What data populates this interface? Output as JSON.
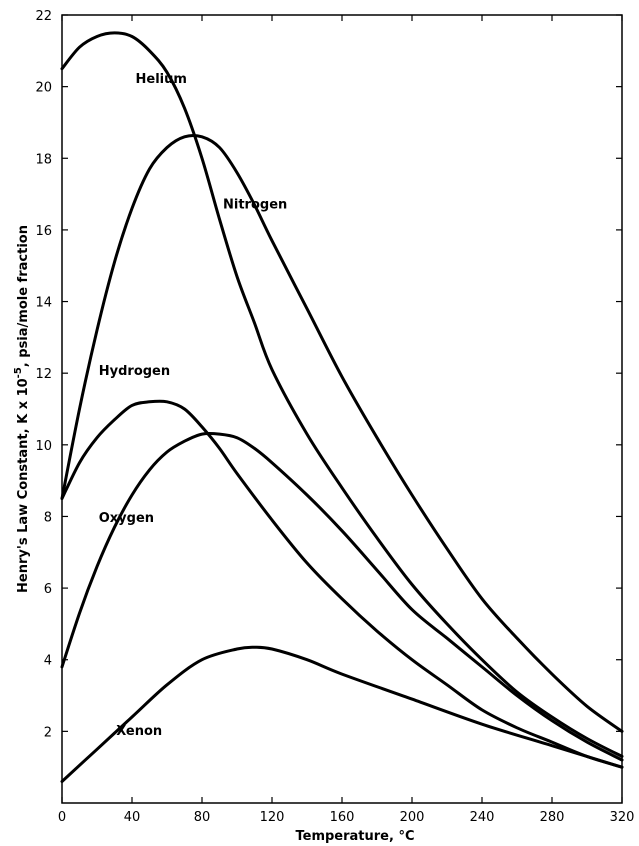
{
  "chart_data": {
    "type": "line",
    "xlabel": "Temperature, °C",
    "ylabel_main": "Henry's Law Constant, K x 10",
    "ylabel_exp": "-5",
    "ylabel_tail": ", psia/mole fraction",
    "xlim": [
      0,
      320
    ],
    "ylim": [
      0,
      22
    ],
    "x_ticks": [
      0,
      40,
      80,
      120,
      160,
      200,
      240,
      280,
      320
    ],
    "y_ticks": [
      2,
      4,
      6,
      8,
      10,
      12,
      14,
      16,
      18,
      20,
      22
    ],
    "grid": false,
    "series": [
      {
        "name": "Helium",
        "x": [
          0,
          10,
          20,
          30,
          40,
          50,
          60,
          70,
          80,
          90,
          100,
          110,
          120,
          140,
          160,
          180,
          200,
          220,
          240,
          260,
          280,
          300,
          320
        ],
        "y": [
          20.5,
          21.1,
          21.4,
          21.5,
          21.4,
          21.0,
          20.4,
          19.4,
          18.0,
          16.3,
          14.7,
          13.4,
          12.1,
          10.3,
          8.8,
          7.4,
          6.1,
          5.0,
          4.0,
          3.1,
          2.4,
          1.8,
          1.3
        ],
        "label_pos": [
          42,
          20.1
        ]
      },
      {
        "name": "Nitrogen",
        "x": [
          0,
          10,
          20,
          30,
          40,
          50,
          60,
          70,
          80,
          90,
          100,
          110,
          120,
          140,
          160,
          180,
          200,
          220,
          240,
          260,
          280,
          300,
          320
        ],
        "y": [
          8.5,
          11.0,
          13.2,
          15.1,
          16.6,
          17.7,
          18.3,
          18.6,
          18.6,
          18.3,
          17.6,
          16.7,
          15.7,
          13.8,
          11.9,
          10.2,
          8.6,
          7.1,
          5.7,
          4.6,
          3.6,
          2.7,
          2.0
        ],
        "label_pos": [
          92,
          16.6
        ]
      },
      {
        "name": "Hydrogen",
        "x": [
          0,
          10,
          20,
          30,
          40,
          50,
          60,
          70,
          80,
          90,
          100,
          120,
          140,
          160,
          180,
          200,
          220,
          240,
          260,
          280,
          300,
          320
        ],
        "y": [
          8.5,
          9.5,
          10.2,
          10.7,
          11.1,
          11.2,
          11.2,
          11.0,
          10.5,
          9.9,
          9.2,
          7.9,
          6.7,
          5.7,
          4.8,
          4.0,
          3.3,
          2.6,
          2.1,
          1.7,
          1.3,
          1.0
        ],
        "label_pos": [
          21,
          11.95
        ]
      },
      {
        "name": "Oxygen",
        "x": [
          0,
          10,
          20,
          30,
          40,
          50,
          60,
          70,
          80,
          90,
          100,
          110,
          120,
          140,
          160,
          180,
          200,
          220,
          240,
          260,
          280,
          300,
          320
        ],
        "y": [
          3.8,
          5.3,
          6.6,
          7.7,
          8.6,
          9.3,
          9.8,
          10.1,
          10.3,
          10.3,
          10.2,
          9.9,
          9.5,
          8.6,
          7.6,
          6.5,
          5.4,
          4.6,
          3.8,
          3.0,
          2.3,
          1.7,
          1.2
        ],
        "label_pos": [
          21,
          7.85
        ]
      },
      {
        "name": "Xenon",
        "x": [
          0,
          20,
          40,
          60,
          80,
          100,
          110,
          120,
          140,
          160,
          200,
          240,
          280,
          320
        ],
        "y": [
          0.6,
          1.5,
          2.4,
          3.3,
          4.0,
          4.3,
          4.35,
          4.3,
          4.0,
          3.6,
          2.9,
          2.2,
          1.6,
          1.0
        ],
        "label_pos": [
          31,
          1.9
        ]
      }
    ]
  }
}
